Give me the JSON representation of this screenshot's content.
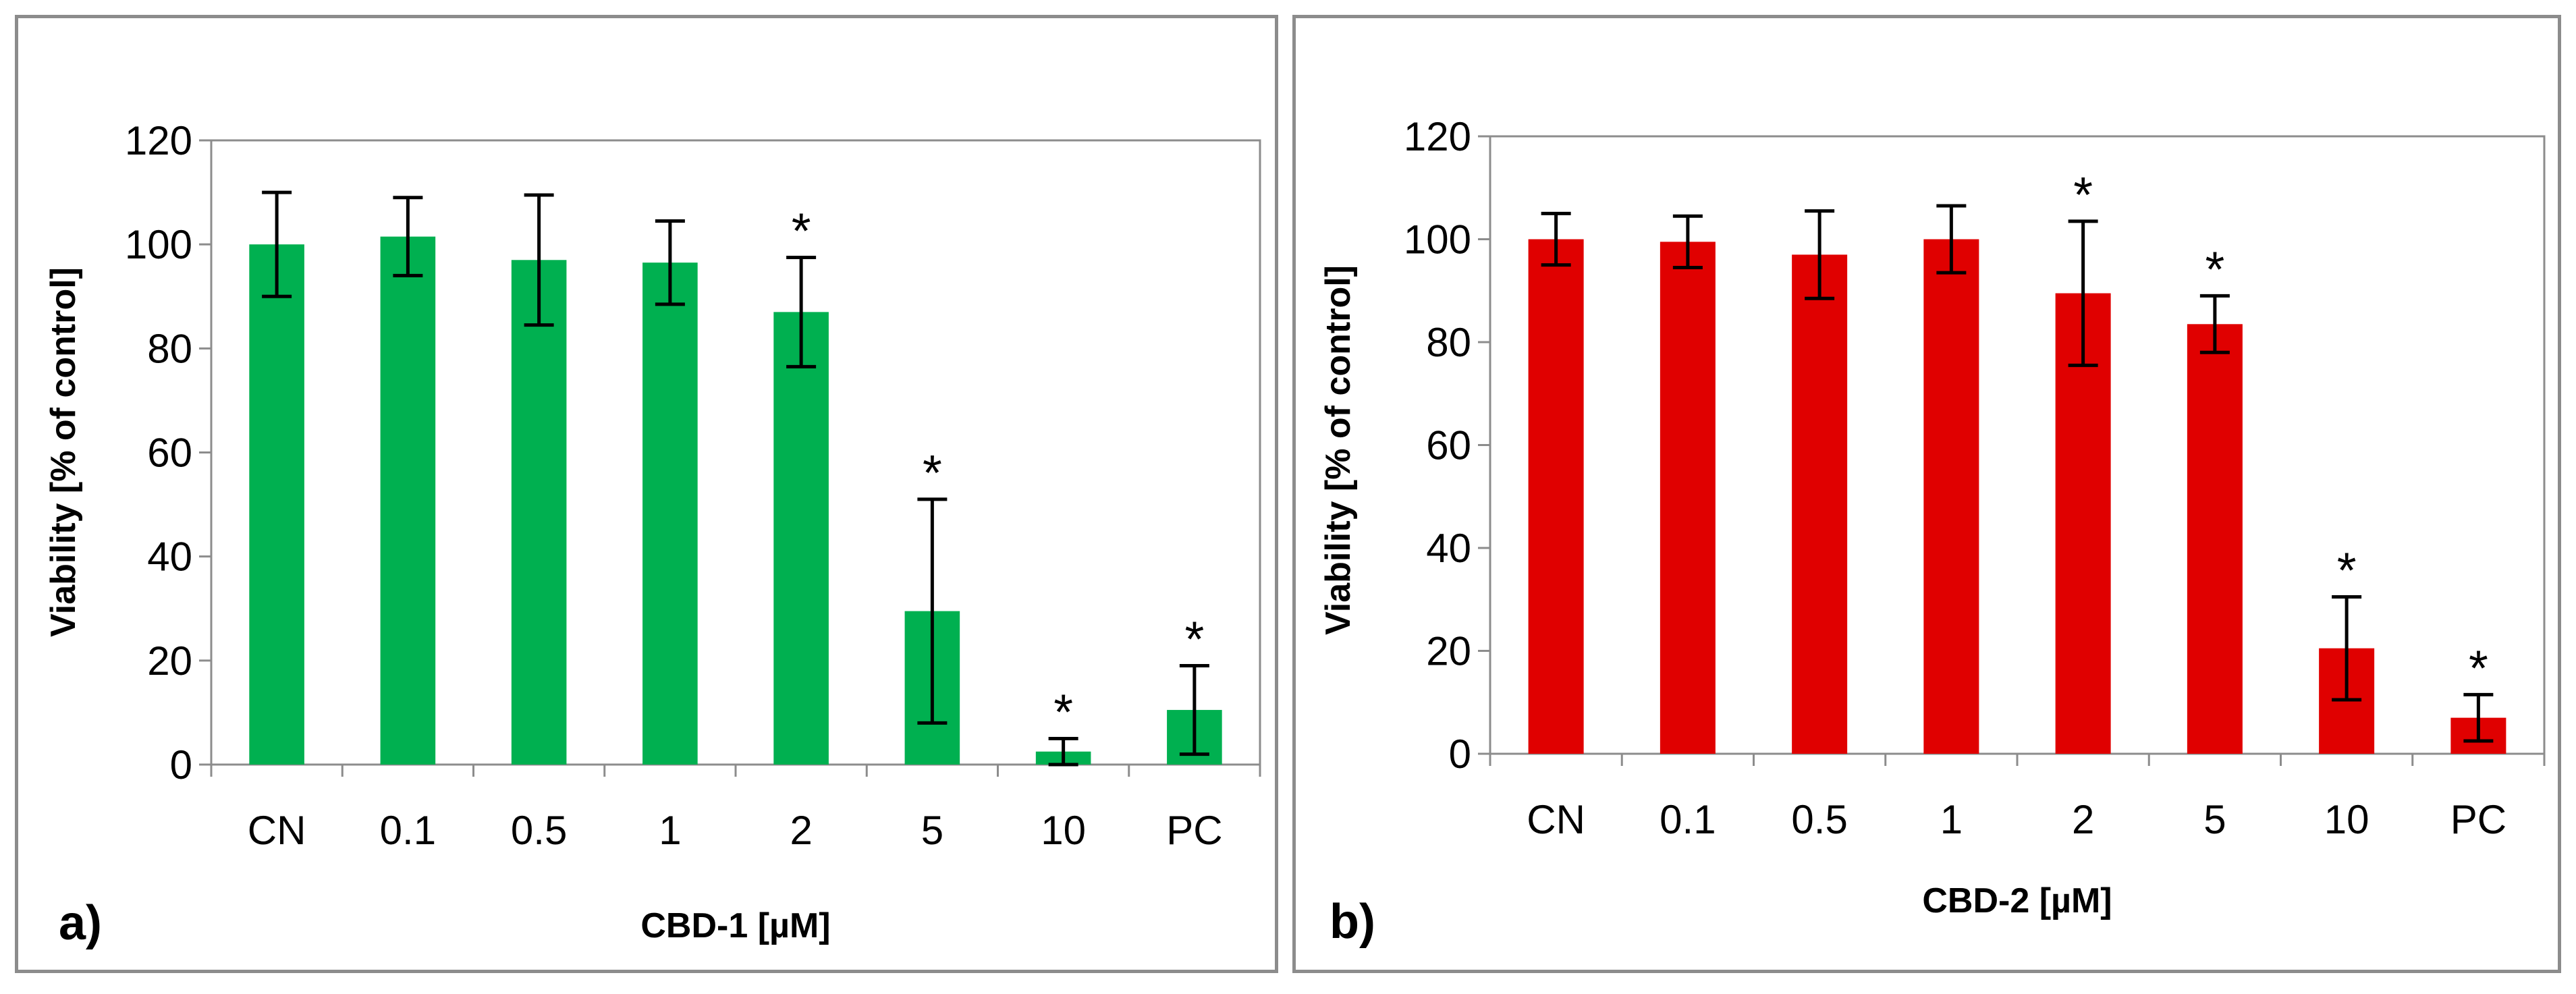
{
  "chart_data": [
    {
      "type": "bar",
      "panel_label": "a)",
      "xlabel": "CBD-1 [µM]",
      "ylabel": "Viability [% of control]",
      "ylim": [
        0,
        120
      ],
      "yticks": [
        0,
        20,
        40,
        60,
        80,
        100,
        120
      ],
      "categories": [
        "CN",
        "0.1",
        "0.5",
        "1",
        "2",
        "5",
        "10",
        "PC"
      ],
      "values": [
        100,
        101.5,
        97,
        96.5,
        87,
        29.5,
        2.5,
        10.5
      ],
      "errors": [
        10,
        7.5,
        12.5,
        8,
        10.5,
        21.5,
        2.5,
        8.5
      ],
      "significance": [
        "",
        "",
        "",
        "",
        "*",
        "*",
        "*",
        "*"
      ],
      "color": "#00b050"
    },
    {
      "type": "bar",
      "panel_label": "b)",
      "xlabel": "CBD-2 [µM]",
      "ylabel": "Viability [% of control]",
      "ylim": [
        0,
        120
      ],
      "yticks": [
        0,
        20,
        40,
        60,
        80,
        100,
        120
      ],
      "categories": [
        "CN",
        "0.1",
        "0.5",
        "1",
        "2",
        "5",
        "10",
        "PC"
      ],
      "values": [
        100,
        99.5,
        97,
        100,
        89.5,
        83.5,
        20.5,
        7
      ],
      "errors": [
        5,
        5,
        8.5,
        6.5,
        14,
        5.5,
        10,
        4.5
      ],
      "significance": [
        "",
        "",
        "",
        "",
        "*",
        "*",
        "*",
        "*"
      ],
      "color": "#e00000"
    }
  ]
}
